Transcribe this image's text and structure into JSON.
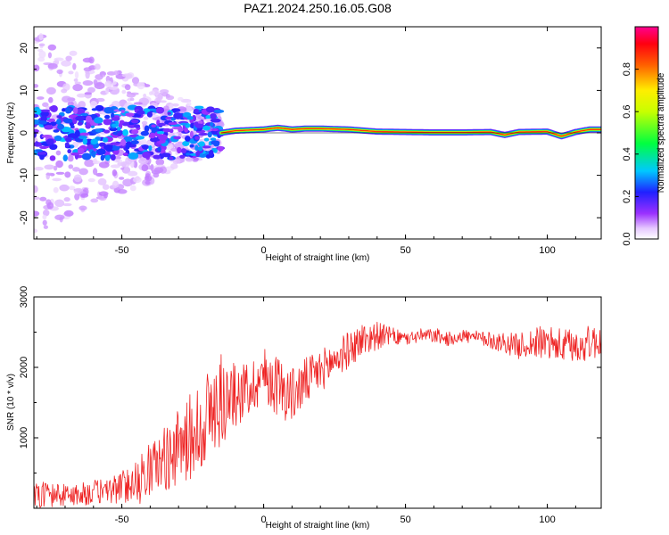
{
  "title": "PAZ1.2024.250.16.05.G08",
  "chart_data": [
    {
      "type": "heatmap",
      "xlabel": "Height of straight line (km)",
      "ylabel": "Frequency (Hz)",
      "xlim": [
        -81,
        119
      ],
      "ylim": [
        -25,
        25
      ],
      "xticks": [
        -50,
        0,
        50,
        100
      ],
      "yticks": [
        -20,
        -10,
        0,
        10,
        20
      ],
      "colorbar": {
        "label": "Normalized spectral amplitude",
        "ticks": [
          0.0,
          0.2,
          0.4,
          0.6,
          0.8
        ],
        "range": [
          0,
          1
        ],
        "colormap": "rainbow (violet to magenta)"
      },
      "ridge": {
        "description": "Dominant frequency track",
        "x": [
          -15,
          -10,
          0,
          5,
          10,
          15,
          20,
          30,
          40,
          50,
          60,
          70,
          80,
          85,
          90,
          100,
          105,
          110,
          115,
          119
        ],
        "y": [
          0,
          0.5,
          0.8,
          1.2,
          0.8,
          1.0,
          1.0,
          0.8,
          0.3,
          0.2,
          0.1,
          0.1,
          0.2,
          -0.5,
          0.2,
          0.3,
          -0.8,
          0.2,
          0.8,
          0.8
        ]
      },
      "scatter_region": {
        "x_range": [
          -81,
          -15
        ],
        "y_range": [
          -25,
          25
        ]
      }
    },
    {
      "type": "line",
      "xlabel": "Height of straight line (km)",
      "ylabel": "SNR (10 * v/v)",
      "xlim": [
        -81,
        119
      ],
      "ylim": [
        0,
        3000
      ],
      "xticks": [
        -50,
        0,
        50,
        100
      ],
      "yticks": [
        1000,
        2000,
        3000
      ],
      "color": "#ee2222",
      "series": [
        {
          "x": [
            -81,
            -75,
            -70,
            -65,
            -60,
            -55,
            -50,
            -45,
            -40,
            -35,
            -30,
            -25,
            -20,
            -15,
            -10,
            -5,
            0,
            5,
            10,
            15,
            20,
            25,
            30,
            35,
            40,
            45,
            50,
            55,
            60,
            65,
            70,
            75,
            80,
            85,
            90,
            95,
            100,
            105,
            110,
            115,
            119
          ],
          "y": [
            200,
            200,
            180,
            200,
            220,
            250,
            300,
            400,
            550,
            700,
            850,
            1050,
            1300,
            1500,
            1600,
            1700,
            1900,
            1750,
            1600,
            1800,
            1950,
            2100,
            2250,
            2400,
            2450,
            2450,
            2400,
            2450,
            2450,
            2400,
            2450,
            2420,
            2380,
            2350,
            2300,
            2350,
            2350,
            2300,
            2300,
            2350,
            2380
          ],
          "noise": [
            200,
            180,
            160,
            170,
            180,
            200,
            230,
            300,
            380,
            450,
            550,
            650,
            700,
            650,
            450,
            400,
            400,
            450,
            400,
            350,
            300,
            280,
            260,
            250,
            200,
            120,
            100,
            100,
            100,
            100,
            100,
            100,
            120,
            150,
            180,
            220,
            250,
            250,
            250,
            250,
            250
          ]
        }
      ]
    }
  ]
}
